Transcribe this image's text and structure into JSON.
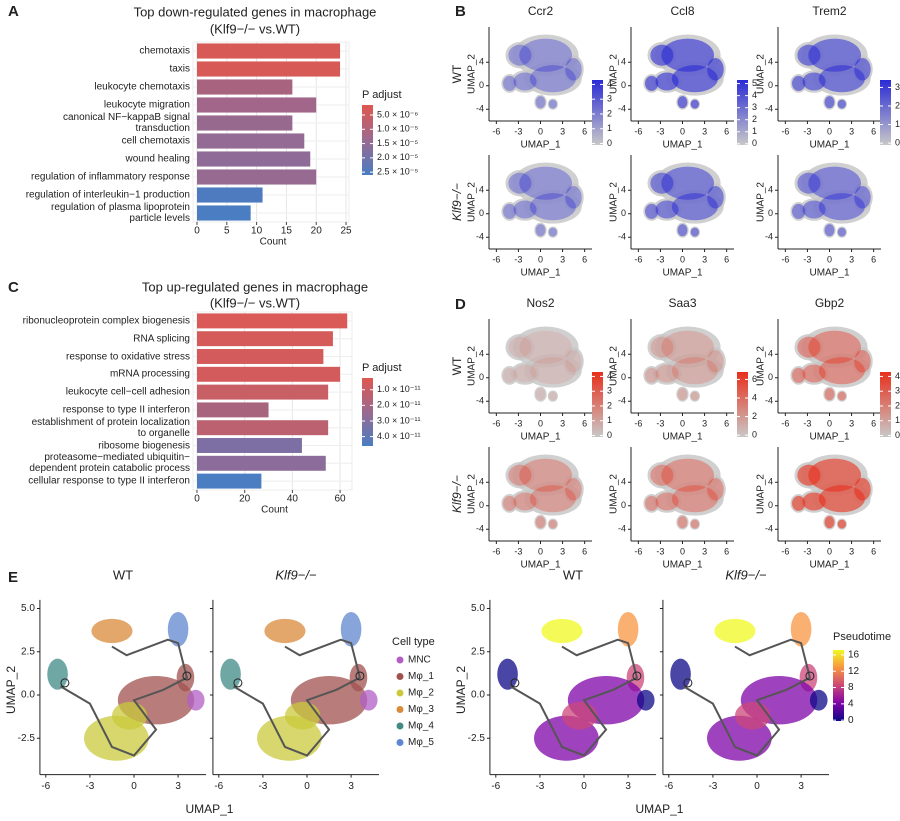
{
  "chart_data": [
    {
      "type": "bar",
      "panel_label": "A",
      "title": "Top down-regulated genes in macrophage",
      "subtitle": "(Klf9−/− vs.WT)",
      "categories": [
        "chemotaxis",
        "taxis",
        "leukocyte chemotaxis",
        "leukocyte migration",
        "canonical NF−kappaB signal\ntransduction",
        "cell chemotaxis",
        "wound healing",
        "regulation of inflammatory response",
        "regulation of interleukin−1 production",
        "regulation of plasma lipoprotein\nparticle levels"
      ],
      "values": [
        24,
        24,
        16,
        20,
        16,
        18,
        19,
        20,
        11,
        9
      ],
      "colors": [
        "#d75a57",
        "#d75a57",
        "#a8647f",
        "#a1668a",
        "#98698f",
        "#946b94",
        "#8f6c97",
        "#976a91",
        "#4e7bc0",
        "#4a7dc2"
      ],
      "xlabel": "Count",
      "xlim": [
        0,
        25.5
      ],
      "xticks": [
        0,
        5,
        10,
        15,
        20,
        25
      ],
      "grid": true,
      "legend": {
        "title": "P adjust",
        "reverse": true,
        "lim": [
          1.5e-06,
          2.6e-05
        ],
        "colors": [
          "#e0574f",
          "#9a6a90",
          "#4a7dc2"
        ],
        "ticks": [
          {
            "value": 5e-06,
            "label": "5.0 × 10⁻⁶"
          },
          {
            "value": 1e-05,
            "label": "1.0 × 10⁻⁵"
          },
          {
            "value": 1.5e-05,
            "label": "1.5 × 10⁻⁵"
          },
          {
            "value": 2e-05,
            "label": "2.0 × 10⁻⁵"
          },
          {
            "value": 2.5e-05,
            "label": "2.5 × 10⁻⁵"
          }
        ]
      }
    },
    {
      "type": "bar",
      "panel_label": "C",
      "title": "Top up-regulated genes in macrophage",
      "subtitle": "(Klf9−/− vs.WT)",
      "categories": [
        "ribonucleoprotein complex biogenesis",
        "RNA splicing",
        "response to oxidative stress",
        "mRNA processing",
        "leukocyte cell−cell adhesion",
        "response to type II interferon",
        "establishment of protein localization\nto organelle",
        "ribosome biogenesis",
        "proteasome−mediated ubiquitin−\ndependent protein catabolic process",
        "cellular response to type II interferon"
      ],
      "values": [
        63,
        57,
        53,
        60,
        55,
        30,
        55,
        44,
        54,
        27
      ],
      "colors": [
        "#d95a56",
        "#d55b5a",
        "#d35b5c",
        "#d45b5b",
        "#c85f65",
        "#a9647d",
        "#bb6170",
        "#7d6fa3",
        "#8c6c9a",
        "#4a7dc2"
      ],
      "xlabel": "Count",
      "xlim": [
        0,
        65
      ],
      "xticks": [
        0,
        20,
        40,
        60
      ],
      "grid": true,
      "legend": {
        "title": "P adjust",
        "reverse": true,
        "lim": [
          2.5e-12,
          4.6e-11
        ],
        "colors": [
          "#e0574f",
          "#9a6a90",
          "#4a7dc2"
        ],
        "ticks": [
          {
            "value": 1e-11,
            "label": "1.0 × 10⁻¹¹"
          },
          {
            "value": 2e-11,
            "label": "2.0 × 10⁻¹¹"
          },
          {
            "value": 3e-11,
            "label": "3.0 × 10⁻¹¹"
          },
          {
            "value": 4e-11,
            "label": "4.0 × 10⁻¹¹"
          }
        ]
      }
    },
    {
      "type": "umap_grid",
      "panel_label": "B",
      "rows": [
        "WT",
        "Klf9−/−"
      ],
      "columns": [
        {
          "title": "Ccr2",
          "lim": [
            -0.1,
            4.3
          ],
          "ticks": [
            0,
            1,
            2,
            3,
            4
          ]
        },
        {
          "title": "Ccl8",
          "lim": [
            -0.1,
            5.3
          ],
          "ticks": [
            0,
            1,
            2,
            3,
            4,
            5
          ]
        },
        {
          "title": "Trem2",
          "lim": [
            -0.1,
            3.4
          ],
          "ticks": [
            0,
            1,
            2,
            3
          ]
        }
      ],
      "colors": [
        "#c8c8c8",
        "#2b2bd6"
      ],
      "xlabel": "UMAP_1",
      "ylabel": "UMAP_2",
      "xlim": [
        -7,
        7
      ],
      "ylim": [
        -6,
        10
      ],
      "xticks": [
        -6,
        -3,
        0,
        3,
        6
      ],
      "yticks": [
        -4,
        0,
        4
      ]
    },
    {
      "type": "umap_grid",
      "panel_label": "D",
      "rows": [
        "WT",
        "Klf9−/−"
      ],
      "columns": [
        {
          "title": "Nos2",
          "lim": [
            -0.1,
            4.3
          ],
          "ticks": [
            0,
            1,
            2,
            3,
            4
          ]
        },
        {
          "title": "Saa3",
          "lim": [
            -0.2,
            6.8
          ],
          "ticks": [
            0,
            2,
            4,
            6
          ]
        },
        {
          "title": "Gbp2",
          "lim": [
            -0.1,
            4.3
          ],
          "ticks": [
            0,
            1,
            2,
            3,
            4
          ]
        }
      ],
      "colors": [
        "#c8c8c8",
        "#e8301c"
      ],
      "xlabel": "UMAP_1",
      "ylabel": "UMAP_2",
      "xlim": [
        -7,
        7
      ],
      "ylim": [
        -6,
        10
      ],
      "xticks": [
        -6,
        -3,
        0,
        3,
        6
      ],
      "yticks": [
        -4,
        0,
        4
      ]
    },
    {
      "type": "umap_trajectory",
      "panel_label": "E",
      "plots": [
        "WT",
        "Klf9−/−",
        "WT",
        "Klf9−/−"
      ],
      "xlabel": "UMAP_1",
      "ylabel": "UMAP_2",
      "xlim": [
        -6.4,
        4.9
      ],
      "ylim": [
        -4.6,
        5.5
      ],
      "xticks": [
        -6,
        -3,
        0,
        3
      ],
      "yticks": [
        -2.5,
        {
          "value": 0,
          "label": "0.0"
        },
        2.5,
        {
          "value": 5,
          "label": "5.0"
        }
      ],
      "legend": {
        "title": "Cell type",
        "items": [
          {
            "name": "MNC",
            "color": "#b15fc6"
          },
          {
            "name": "Mφ_1",
            "color": "#a0524f"
          },
          {
            "name": "Mφ_2",
            "color": "#c9c93c"
          },
          {
            "name": "Mφ_3",
            "color": "#d98a3a"
          },
          {
            "name": "Mφ_4",
            "color": "#3f8a87"
          },
          {
            "name": "Mφ_5",
            "color": "#5f86cf"
          }
        ]
      },
      "colorbar": {
        "title": "Pseudotime",
        "lim": [
          -0.2,
          17.2
        ],
        "ticks": [
          0,
          4,
          8,
          12,
          16
        ],
        "colors": [
          "#0d0887",
          "#7e03a8",
          "#cc4778",
          "#f89540",
          "#f0f921"
        ]
      }
    }
  ]
}
